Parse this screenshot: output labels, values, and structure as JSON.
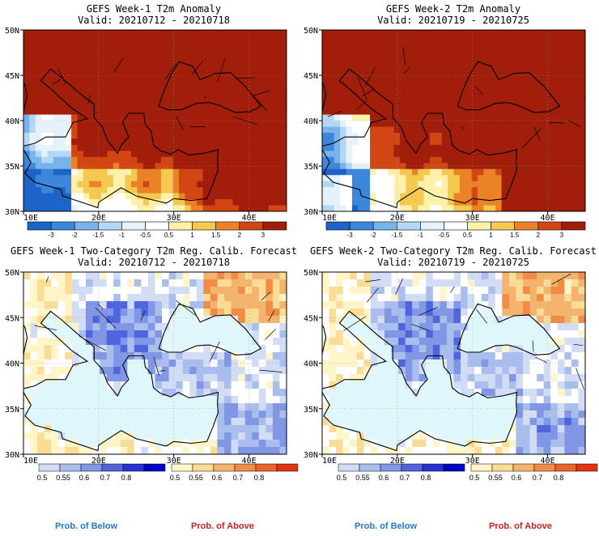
{
  "panels": [
    {
      "id": "week1-anom",
      "title": "GEFS Week-1 T2m Anomaly",
      "valid": "Valid: 20210712 - 20210718",
      "scheme": "anomaly",
      "seed": 3
    },
    {
      "id": "week2-anom",
      "title": "GEFS Week-2 T2m Anomaly",
      "valid": "Valid: 20210719 - 20210725",
      "scheme": "anomaly",
      "seed": 7
    },
    {
      "id": "week1-prob",
      "title": "GEFS Week-1 Two-Category T2m Reg. Calib. Forecast",
      "valid": "Valid: 20210712 - 20210718",
      "scheme": "prob",
      "seed": 11
    },
    {
      "id": "week2-prob",
      "title": "GEFS Week-2 Two-Category T2m Reg. Calib. Forecast",
      "valid": "Valid: 20210719 - 20210725",
      "scheme": "prob",
      "seed": 13
    }
  ],
  "lat_labels": [
    "50N",
    "45N",
    "40N",
    "35N",
    "30N"
  ],
  "lon_labels": [
    "10E",
    "20E",
    "30E",
    "40E"
  ],
  "anomaly_legend": {
    "labels": [
      "-3",
      "-2",
      "-1.5",
      "-1",
      "-0.5",
      "0.5",
      "1",
      "1.5",
      "2",
      "3"
    ],
    "colors": [
      "#1e64c8",
      "#3c87dc",
      "#78b4eb",
      "#b4d7f5",
      "#e6f2fa",
      "#ffffff",
      "#fff0aa",
      "#f5c850",
      "#eb8228",
      "#d24614",
      "#a01e0a"
    ]
  },
  "below_legend": {
    "labels": [
      "0.5",
      "0.55",
      "0.6",
      "0.7",
      "0.8"
    ],
    "colors": [
      "#d2dcf5",
      "#aabeee",
      "#8296e6",
      "#5064de",
      "#2832d2",
      "#0000c8"
    ]
  },
  "above_legend": {
    "labels": [
      "0.5",
      "0.55",
      "0.6",
      "0.7",
      "0.8"
    ],
    "colors": [
      "#fff5c8",
      "#fadc96",
      "#f5b46e",
      "#f08c46",
      "#eb6428",
      "#e63214"
    ]
  },
  "prob_labels": {
    "below": "Prob. of Below",
    "above": "Prob. of Above",
    "below_color": "#1e7ad2",
    "above_color": "#d21e1e"
  },
  "colors": {
    "anom_hot": "#a01e0a",
    "sea_prob": "#dff7fa"
  }
}
